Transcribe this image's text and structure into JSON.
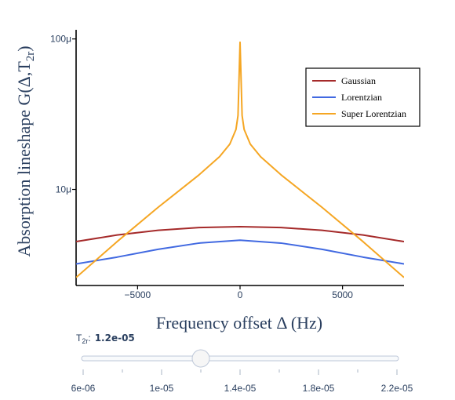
{
  "chart_data": {
    "type": "line",
    "xlabel": "Frequency offset Δ (Hz)",
    "ylabel_main": "Absorption lineshape G(Δ,T",
    "ylabel_sub": "2r",
    "ylabel_close": ")",
    "xlim": [
      -8000,
      8000
    ],
    "ylim": [
      2.3e-06,
      0.000115
    ],
    "yscale": "log",
    "xticks": [
      -5000,
      0,
      5000
    ],
    "xtick_labels": [
      "−5000",
      "0",
      "5000"
    ],
    "yticks": [
      1e-05,
      0.0001
    ],
    "ytick_labels": [
      "10μ",
      "100μ"
    ],
    "legend_position": "top-right",
    "series": [
      {
        "name": "Gaussian",
        "color": "#a52a2a",
        "x": [
          -8000,
          -6000,
          -4000,
          -2000,
          0,
          2000,
          4000,
          6000,
          8000
        ],
        "y": [
          4.5e-06,
          4.98e-06,
          5.35e-06,
          5.58e-06,
          5.66e-06,
          5.58e-06,
          5.35e-06,
          4.98e-06,
          4.5e-06
        ]
      },
      {
        "name": "Lorentzian",
        "color": "#4169e1",
        "x": [
          -8000,
          -6000,
          -4000,
          -2000,
          0,
          2000,
          4000,
          6000,
          8000
        ],
        "y": [
          3.2e-06,
          3.55e-06,
          4e-06,
          4.4e-06,
          4.6e-06,
          4.4e-06,
          4e-06,
          3.55e-06,
          3.2e-06
        ]
      },
      {
        "name": "Super Lorentzian",
        "color": "#f5a623",
        "x": [
          -8000,
          -6000,
          -4000,
          -2000,
          -1000,
          -500,
          -200,
          -100,
          0,
          100,
          200,
          500,
          1000,
          2000,
          4000,
          6000,
          8000
        ],
        "y": [
          2.6e-06,
          4.5e-06,
          7.6e-06,
          1.25e-05,
          1.65e-05,
          2e-05,
          2.5e-05,
          3.1e-05,
          9.5e-05,
          3.1e-05,
          2.5e-05,
          2e-05,
          1.65e-05,
          1.25e-05,
          7.6e-06,
          4.5e-06,
          2.6e-06
        ]
      }
    ]
  },
  "slider": {
    "label": "T",
    "label_sub": "2r",
    "label_colon": ":",
    "current_value": "1.2e-05",
    "current_numeric": 1.2e-05,
    "range": [
      6e-06,
      2.2e-05
    ],
    "ticks": [
      6e-06,
      8e-06,
      1e-05,
      1.2e-05,
      1.4e-05,
      1.6e-05,
      1.8e-05,
      2e-05,
      2.2e-05
    ],
    "tick_labels": [
      "6e-06",
      "1e-05",
      "1.4e-05",
      "1.8e-05",
      "2.2e-05"
    ],
    "labeled_ticks": [
      6e-06,
      1e-05,
      1.4e-05,
      1.8e-05,
      2.2e-05
    ]
  }
}
